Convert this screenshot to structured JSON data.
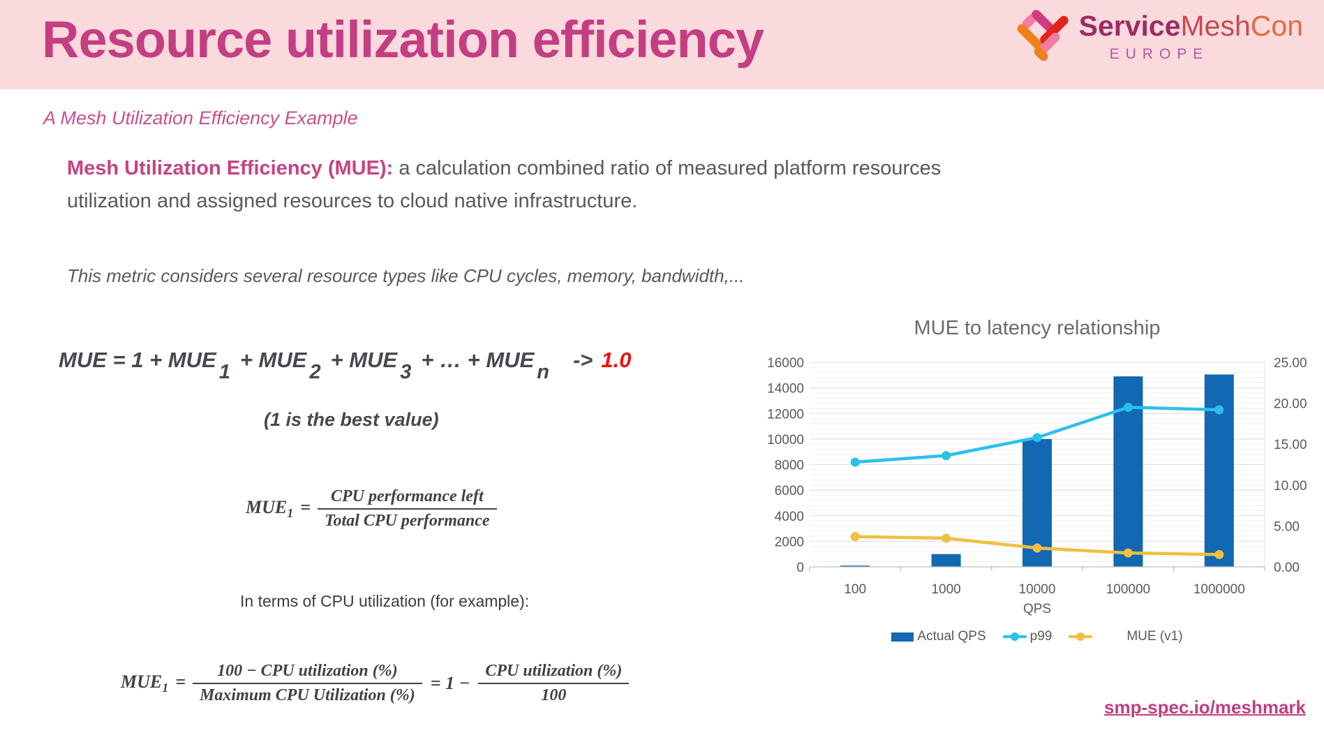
{
  "header": {
    "title": "Resource utilization efficiency",
    "logo": {
      "brand_service": "Service",
      "brand_mesh": "Mesh",
      "brand_con": "Con",
      "region": "EUROPE"
    }
  },
  "subtitle": "A Mesh Utilization Efficiency Example",
  "definition": {
    "term": "Mesh Utilization Efficiency (MUE):",
    "line1": " a calculation combined ratio of measured platform resources",
    "line2": "utilization and assigned resources to cloud native infrastructure."
  },
  "note": "This metric considers several resource types like CPU cycles, memory, bandwidth,...",
  "formula_sum": {
    "lead": "MUE",
    "eq": " = 1 + MUE",
    "sub1": "1",
    "plus2": "+ MUE",
    "sub2": "2",
    "plus3": "+ MUE",
    "sub3": "3",
    "plusn": "+ … + MUE",
    "subn": "n",
    "arrow": "->",
    "target": "1.0",
    "caption": "(1 is the best value)"
  },
  "formula_mue1": {
    "lhs": "MUE",
    "lhs_sub": "1",
    "eq": "=",
    "numerator": "CPU performance left",
    "denominator": "Total CPU performance"
  },
  "cpu_note": "In terms of CPU utilization (for example):",
  "formula_cpu": {
    "lhs": "MUE",
    "lhs_sub": "1",
    "eq": "=",
    "num1": "100 − CPU utilization (%)",
    "den1": "Maximum CPU Utilization (%)",
    "mid": "= 1 −",
    "num2": "CPU utilization (%)",
    "den2": "100"
  },
  "chart_data": {
    "type": "combo-bar-line",
    "title": "MUE to latency relationship",
    "categories": [
      "100",
      "1000",
      "10000",
      "100000",
      "1000000"
    ],
    "xlabel": "QPS",
    "left_axis": {
      "min": 0,
      "max": 16000,
      "step": 2000,
      "minor_step": 400
    },
    "right_axis": {
      "min": 0,
      "max": 25,
      "step": 5,
      "decimals": 2
    },
    "series": [
      {
        "name": "Actual QPS",
        "type": "bar",
        "axis": "left",
        "color": "#1268b3",
        "values": [
          100,
          1000,
          10000,
          14900,
          15050
        ]
      },
      {
        "name": "p99",
        "type": "line",
        "axis": "right",
        "color": "#2bc0ec",
        "values": [
          12.8,
          13.6,
          15.8,
          19.5,
          19.2
        ]
      },
      {
        "name": "MUE (v1)",
        "type": "line",
        "axis": "right",
        "color": "#eebf41",
        "values": [
          3.7,
          3.5,
          2.3,
          1.7,
          1.5
        ]
      }
    ],
    "legend_position": "bottom",
    "grid": {
      "major": true,
      "minor": true
    }
  },
  "footer": {
    "link": "smp-spec.io/meshmark"
  },
  "colors": {
    "header_bg": "#fbdade",
    "title_pink": "#c33e82",
    "subtitle_pink": "#c94f8e",
    "body_gray": "#58595b",
    "formula_gray": "#45494f",
    "target_red": "#ef1010",
    "bar_blue": "#1268b3",
    "line_cyan": "#2bc0ec",
    "line_yellow": "#eebf41",
    "link_pink": "#bf3f7e",
    "logo_service": "#9d2c63",
    "logo_mesh": "#c64a4f",
    "logo_con": "#e8683a",
    "logo_europe": "#b457a0",
    "icon_orange": "#f08019",
    "icon_red": "#e1251b",
    "icon_magenta": "#d23a80",
    "icon_pink": "#f27ca3"
  }
}
